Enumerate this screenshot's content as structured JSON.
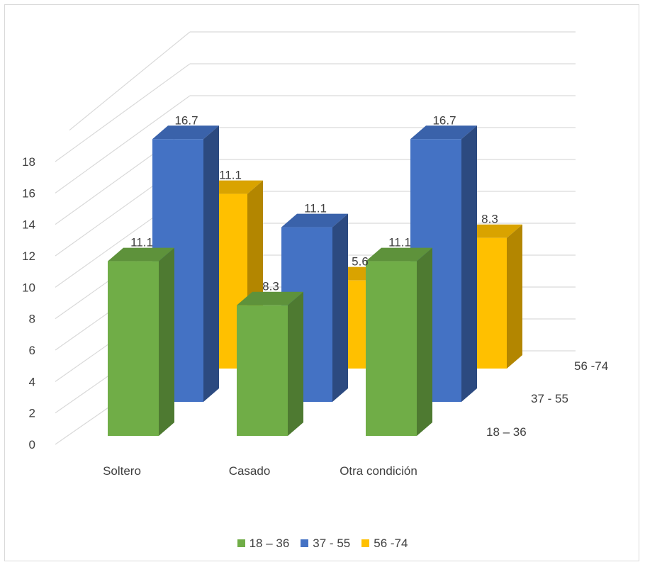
{
  "chart_data": {
    "type": "bar",
    "subtype": "3d-column",
    "title": "",
    "categories": [
      "Soltero",
      "Casado",
      "Otra condición"
    ],
    "series": [
      {
        "name": "18 – 36",
        "values": [
          11.1,
          8.3,
          11.1
        ],
        "color": "#70ad47",
        "labels": [
          "11.1",
          "8.3",
          "11.1"
        ]
      },
      {
        "name": "37 - 55",
        "values": [
          16.7,
          11.1,
          16.7
        ],
        "color": "#4472c4",
        "labels": [
          "16.7",
          "11.1",
          "16.7"
        ]
      },
      {
        "name": "56 -74",
        "values": [
          11.1,
          5.6,
          8.3
        ],
        "color": "#ffc000",
        "labels": [
          "11.1",
          "5.6",
          "8.3"
        ]
      }
    ],
    "ylim": [
      0,
      18
    ],
    "yticks": [
      "0",
      "2",
      "4",
      "6",
      "8",
      "10",
      "12",
      "14",
      "16",
      "18"
    ],
    "grid": true,
    "legend_position": "bottom"
  }
}
